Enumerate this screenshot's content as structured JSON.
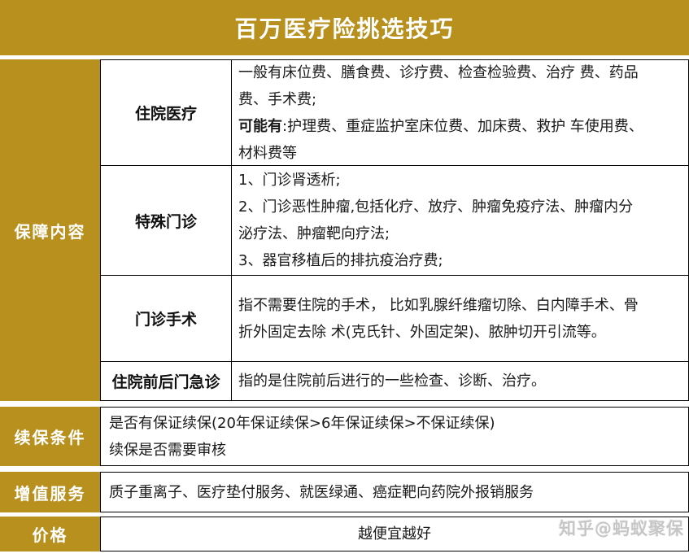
{
  "colors": {
    "gold": "#B8901E"
  },
  "title": "百万医疗险挑选技巧",
  "coverage": {
    "label": "保障内容",
    "rows": [
      {
        "name": "住院医疗",
        "p1": "一般有床位费、膳食费、诊疗费、检查检验费、治疗 费、药品\n费、手术费;\n",
        "bold": "可能有",
        "p2": ":护理费、重症监护室床位费、加床费、救护 车使用费、\n材料费等"
      },
      {
        "name": "特殊门诊",
        "content": "1、门诊肾透析;\n2、门诊恶性肿瘤,包括化疗、放疗、肿瘤免疫疗法、肿瘤内分\n泌疗法、肿瘤靶向疗法;\n3、器官移植后的排抗疫治疗费;"
      },
      {
        "name": "门诊手术",
        "content": "指不需要住院的手术， 比如乳腺纤维瘤切除、白内障手术、骨\n折外固定去除 术(克氏针、外固定架)、脓肿切开引流等。"
      },
      {
        "name": "住院前后门急诊",
        "content": "指的是住院前后进行的一些检查、诊断、治疗。"
      }
    ]
  },
  "renewal": {
    "label": "续保条件",
    "content": "是否有保证续保(20年保证续保>6年保证续保>不保证续保)\n续保是否需要审核"
  },
  "vas": {
    "label": "增值服务",
    "content": "质子重离子、医疗垫付服务、就医绿通、癌症靶向药院外报销服务"
  },
  "price": {
    "label": "价格",
    "content": "越便宜越好"
  },
  "watermark": "知乎@蚂蚁聚保"
}
